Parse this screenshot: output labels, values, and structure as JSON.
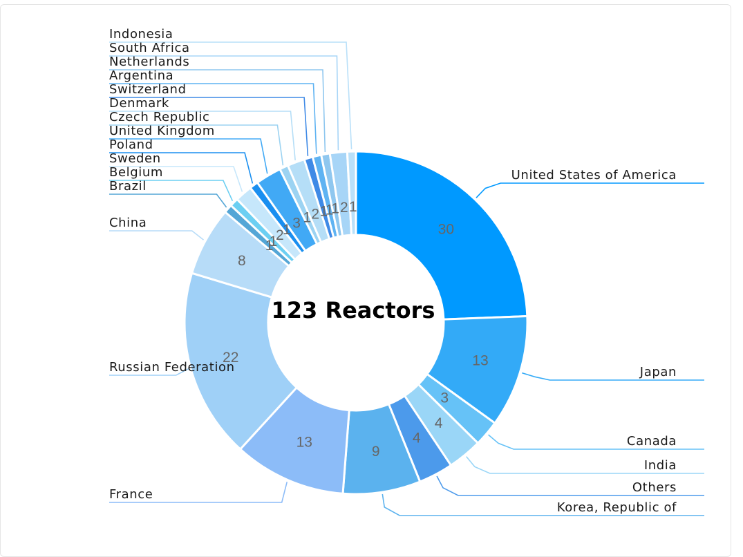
{
  "chart_data": {
    "type": "pie",
    "center_label": "123 Reactors",
    "categories": [
      "United States of America",
      "Japan",
      "Canada",
      "India",
      "Others",
      "Korea, Republic of",
      "France",
      "Russian Federation",
      "China",
      "Brazil",
      "Belgium",
      "Sweden",
      "Poland",
      "United Kingdom",
      "Czech Republic",
      "Denmark",
      "Switzerland",
      "Argentina",
      "Netherlands",
      "South Africa",
      "Indonesia"
    ],
    "values": [
      30,
      13,
      3,
      4,
      4,
      9,
      13,
      22,
      8,
      1,
      1,
      2,
      1,
      3,
      1,
      2,
      1,
      1,
      1,
      2,
      1
    ],
    "colors": [
      "#0099ff",
      "#33aaf7",
      "#66c2f7",
      "#9ad6f7",
      "#4c9aeb",
      "#5bb2ee",
      "#8cbcf8",
      "#9fd0f7",
      "#b7dcf8",
      "#54a6d6",
      "#6ccff2",
      "#c6e7fb",
      "#1a8ff0",
      "#41a9f5",
      "#9cd3f2",
      "#b5def7",
      "#3f8ae6",
      "#5fb3f2",
      "#8fc7ef",
      "#a7d5f7",
      "#b9e0f9"
    ]
  }
}
